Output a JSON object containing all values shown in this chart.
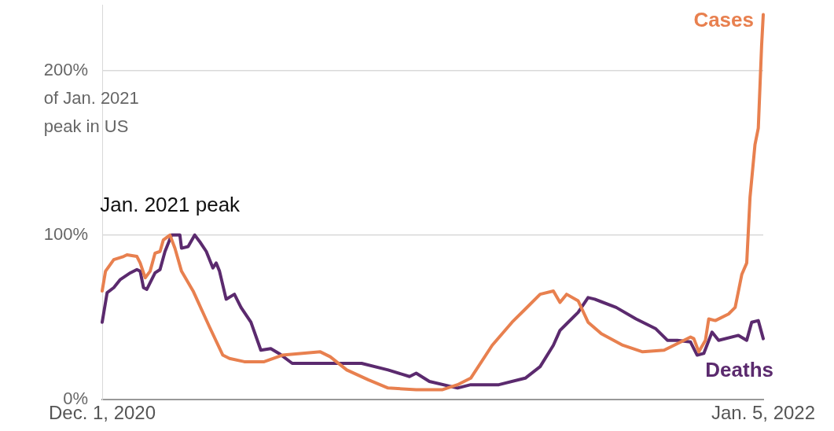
{
  "chart_data": {
    "type": "line",
    "ylabel": "of Jan. 2021 peak in US",
    "xlim": [
      "2020-12-01",
      "2022-01-05"
    ],
    "xticks": [
      {
        "value": "2020-12-01",
        "label": "Dec. 1, 2020"
      },
      {
        "value": "2022-01-05",
        "label": "Jan. 5, 2022"
      }
    ],
    "ylim": [
      0,
      240
    ],
    "yticks": [
      {
        "value": 0,
        "label": "0%"
      },
      {
        "value": 100,
        "label": "100%"
      },
      {
        "value": 200,
        "label": "200%"
      }
    ],
    "grid": "y",
    "legend": false,
    "annotations": [
      {
        "text": "Jan. 2021 peak",
        "x": "2021-01-11",
        "y": 100
      }
    ],
    "series": [
      {
        "name": "Cases",
        "color": "#e8804f",
        "x": [
          "2020-12-01",
          "2020-12-03",
          "2020-12-08",
          "2020-12-14",
          "2020-12-16",
          "2020-12-22",
          "2020-12-24",
          "2020-12-27",
          "2020-12-30",
          "2021-01-02",
          "2021-01-05",
          "2021-01-07",
          "2021-01-11",
          "2021-01-14",
          "2021-01-18",
          "2021-01-25",
          "2021-02-04",
          "2021-02-12",
          "2021-02-16",
          "2021-02-25",
          "2021-03-09",
          "2021-03-20",
          "2021-04-12",
          "2021-04-18",
          "2021-04-28",
          "2021-05-11",
          "2021-05-23",
          "2021-06-09",
          "2021-06-25",
          "2021-07-04",
          "2021-07-12",
          "2021-07-25",
          "2021-08-06",
          "2021-08-14",
          "2021-08-23",
          "2021-08-31",
          "2021-09-04",
          "2021-09-08",
          "2021-09-15",
          "2021-09-21",
          "2021-09-29",
          "2021-10-12",
          "2021-10-24",
          "2021-11-06",
          "2021-11-18",
          "2021-11-22",
          "2021-11-24",
          "2021-11-27",
          "2021-12-01",
          "2021-12-03",
          "2021-12-07",
          "2021-12-15",
          "2021-12-19",
          "2021-12-23",
          "2021-12-26",
          "2021-12-28",
          "2021-12-31",
          "2022-01-02",
          "2022-01-03",
          "2022-01-04",
          "2022-01-05"
        ],
        "values": [
          66,
          78,
          85,
          87,
          88,
          87,
          83,
          74,
          78,
          89,
          90,
          97,
          100,
          92,
          78,
          66,
          44,
          27,
          25,
          23,
          23,
          27,
          29,
          26,
          18,
          12,
          7,
          6,
          6,
          9,
          13,
          33,
          47,
          55,
          64,
          66,
          59,
          64,
          60,
          47,
          40,
          33,
          29,
          30,
          36,
          38,
          37,
          29,
          36,
          49,
          48,
          52,
          56,
          76,
          83,
          123,
          155,
          165,
          190,
          215,
          234
        ]
      },
      {
        "name": "Deaths",
        "color": "#5b2a6e",
        "x": [
          "2020-12-01",
          "2020-12-04",
          "2020-12-08",
          "2020-12-12",
          "2020-12-18",
          "2020-12-22",
          "2020-12-24",
          "2020-12-26",
          "2020-12-28",
          "2021-01-02",
          "2021-01-05",
          "2021-01-08",
          "2021-01-12",
          "2021-01-17",
          "2021-01-18",
          "2021-01-22",
          "2021-01-26",
          "2021-01-29",
          "2021-02-02",
          "2021-02-06",
          "2021-02-08",
          "2021-02-10",
          "2021-02-14",
          "2021-02-19",
          "2021-02-23",
          "2021-03-01",
          "2021-03-07",
          "2021-03-13",
          "2021-03-18",
          "2021-03-26",
          "2021-04-20",
          "2021-05-07",
          "2021-05-23",
          "2021-06-05",
          "2021-06-09",
          "2021-06-17",
          "2021-07-04",
          "2021-07-12",
          "2021-07-29",
          "2021-08-14",
          "2021-08-23",
          "2021-08-31",
          "2021-09-04",
          "2021-09-08",
          "2021-09-15",
          "2021-09-21",
          "2021-09-25",
          "2021-10-08",
          "2021-10-20",
          "2021-11-01",
          "2021-11-08",
          "2021-11-14",
          "2021-11-22",
          "2021-11-26",
          "2021-11-30",
          "2021-12-05",
          "2021-12-09",
          "2021-12-21",
          "2021-12-26",
          "2021-12-29",
          "2022-01-02",
          "2022-01-05"
        ],
        "values": [
          47,
          65,
          68,
          73,
          77,
          79,
          78,
          68,
          67,
          77,
          79,
          90,
          100,
          100,
          92,
          93,
          100,
          96,
          90,
          80,
          83,
          78,
          61,
          64,
          56,
          47,
          30,
          31,
          28,
          22,
          22,
          22,
          18,
          14,
          16,
          11,
          7,
          9,
          9,
          13,
          20,
          33,
          42,
          46,
          53,
          62,
          61,
          56,
          49,
          43,
          36,
          36,
          35,
          27,
          28,
          41,
          36,
          39,
          36,
          47,
          48,
          37
        ]
      }
    ]
  }
}
